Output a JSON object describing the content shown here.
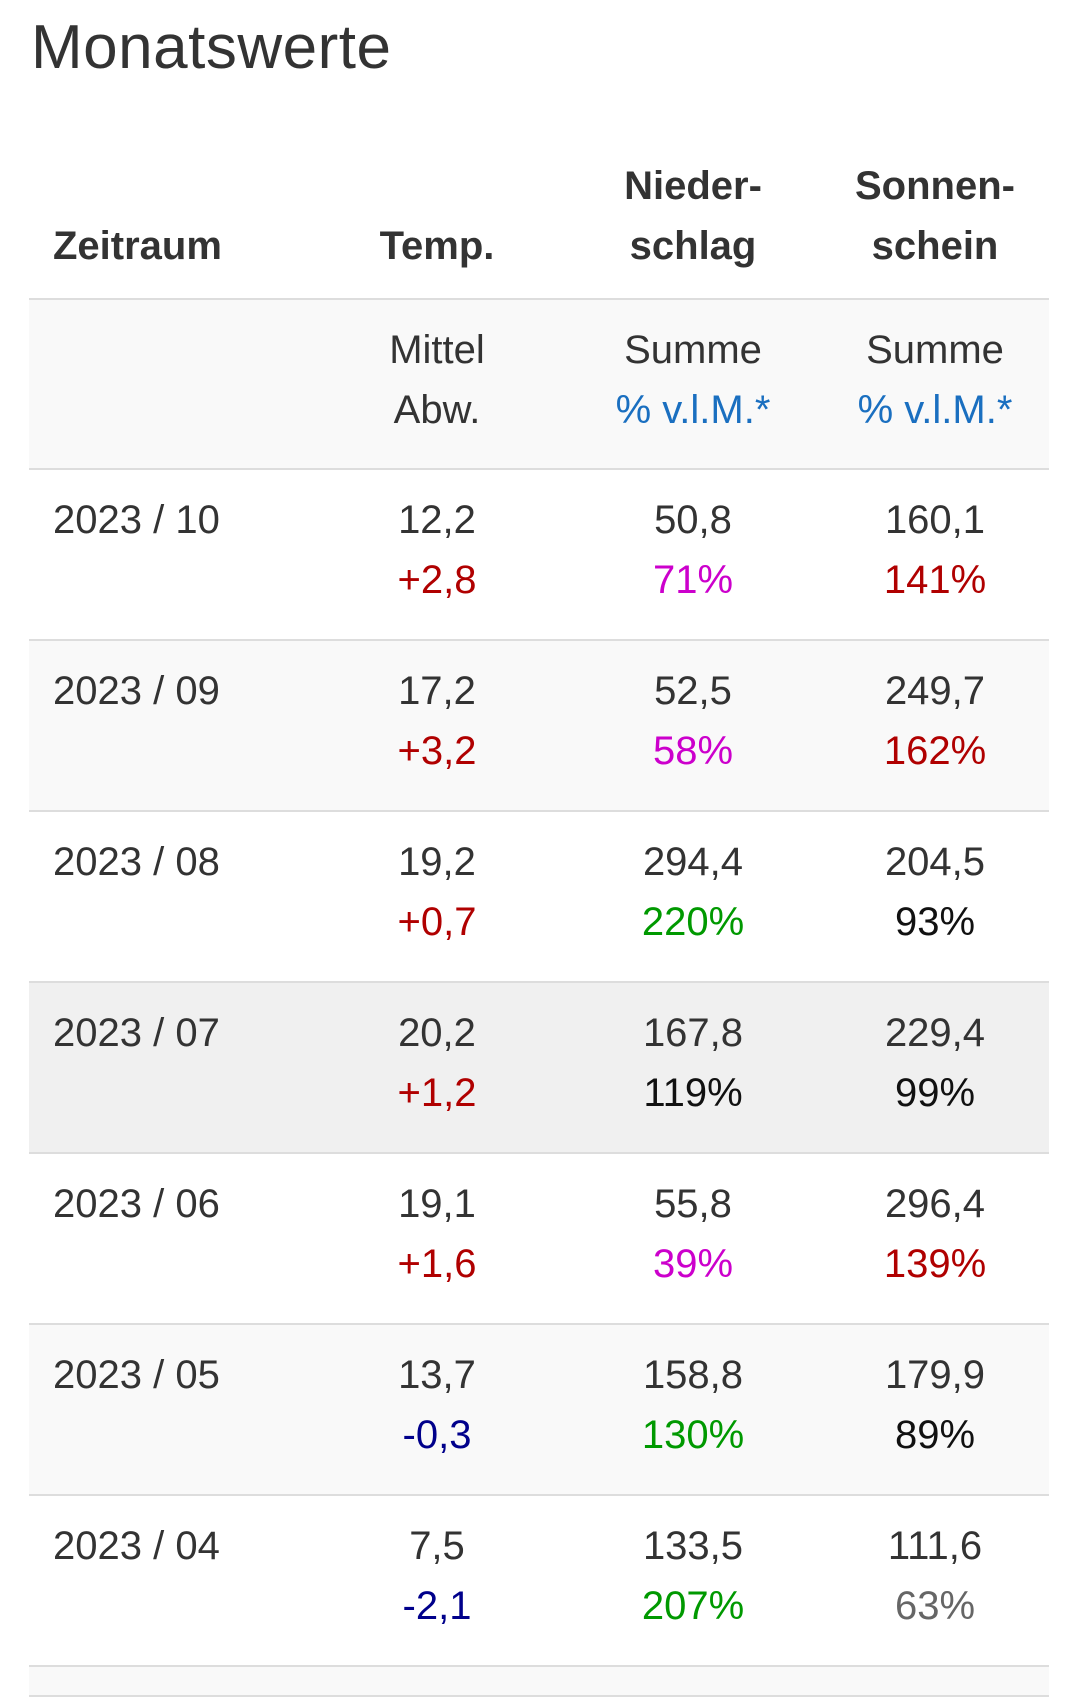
{
  "title": "Monatswerte",
  "header": {
    "zeitraum": "Zeitraum",
    "temp": "Temp.",
    "nieder_1": "Nieder-",
    "nieder_2": "schlag",
    "sonnen_1": "Sonnen-",
    "sonnen_2": "schein"
  },
  "subheader": {
    "temp_1": "Mittel",
    "temp_2": "Abw.",
    "nieder_1": "Summe",
    "nieder_2": "% v.l.M.*",
    "sonnen_1": "Summe",
    "sonnen_2": "% v.l.M.*"
  },
  "rows": [
    {
      "period": "2023 / 10",
      "temp": "12,2",
      "temp_dev": "+2,8",
      "precip": "50,8",
      "precip_pct": "71%",
      "sun": "160,1",
      "sun_pct": "141%"
    },
    {
      "period": "2023 / 09",
      "temp": "17,2",
      "temp_dev": "+3,2",
      "precip": "52,5",
      "precip_pct": "58%",
      "sun": "249,7",
      "sun_pct": "162%"
    },
    {
      "period": "2023 / 08",
      "temp": "19,2",
      "temp_dev": "+0,7",
      "precip": "294,4",
      "precip_pct": "220%",
      "sun": "204,5",
      "sun_pct": "93%"
    },
    {
      "period": "2023 / 07",
      "temp": "20,2",
      "temp_dev": "+1,2",
      "precip": "167,8",
      "precip_pct": "119%",
      "sun": "229,4",
      "sun_pct": "99%"
    },
    {
      "period": "2023 / 06",
      "temp": "19,1",
      "temp_dev": "+1,6",
      "precip": "55,8",
      "precip_pct": "39%",
      "sun": "296,4",
      "sun_pct": "139%"
    },
    {
      "period": "2023 / 05",
      "temp": "13,7",
      "temp_dev": "-0,3",
      "precip": "158,8",
      "precip_pct": "130%",
      "sun": "179,9",
      "sun_pct": "89%"
    },
    {
      "period": "2023 / 04",
      "temp": "7,5",
      "temp_dev": "-2,1",
      "precip": "133,5",
      "precip_pct": "207%",
      "sun": "111,6",
      "sun_pct": "63%"
    }
  ],
  "colors": {
    "positive_temp": "#b00000",
    "negative_temp": "#00008b",
    "dry_precip": "#cc00cc",
    "wet_precip": "#009900",
    "sunny": "#b00000",
    "link": "#1a6fc0"
  }
}
